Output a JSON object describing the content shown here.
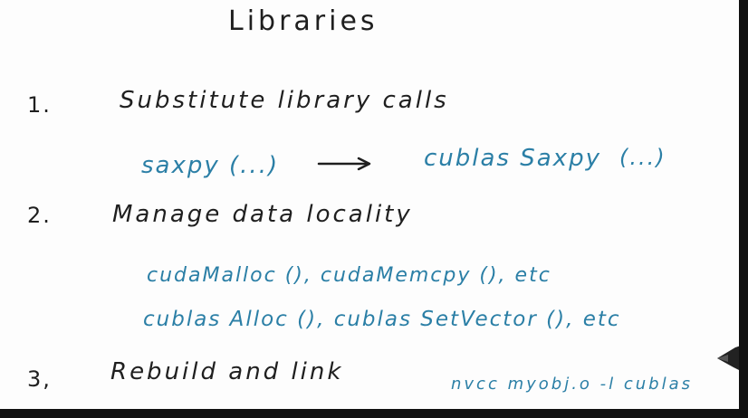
{
  "title": "Libraries",
  "steps": [
    {
      "number": "1.",
      "heading": "Substitute library calls",
      "details": [
        "saxpy (...)",
        "cublas Saxpy",
        "(...)"
      ]
    },
    {
      "number": "2.",
      "heading": "Manage data locality",
      "details": [
        "cudaMalloc (), cudaMemcpy (), etc",
        "cublas Alloc (), cublas SetVector (), etc"
      ]
    },
    {
      "number": "3,",
      "heading": "Rebuild and link",
      "details": [
        "nvcc myobj.o -l cublas"
      ]
    }
  ],
  "colors": {
    "ink": "#1f1f1f",
    "blue_ink": "#2b7fa6",
    "frame": "#111111"
  },
  "icons": {
    "arrow": "right-arrow-icon",
    "pen": "pen-tip-icon"
  }
}
